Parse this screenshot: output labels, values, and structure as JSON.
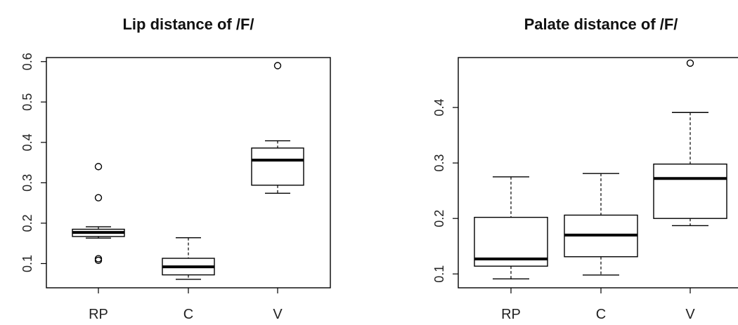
{
  "chart_data": [
    {
      "type": "boxplot",
      "title": "Lip distance of /F/",
      "categories": [
        "RP",
        "C",
        "V"
      ],
      "ylim": [
        0.04,
        0.61
      ],
      "yticks": [
        0.1,
        0.2,
        0.3,
        0.4,
        0.5,
        0.6
      ],
      "ytick_labels": [
        "0.1",
        "0.2",
        "0.3",
        "0.4",
        "0.5",
        "0.6"
      ],
      "boxes": [
        {
          "name": "RP",
          "whisker_low": 0.163,
          "q1": 0.167,
          "median": 0.177,
          "q3": 0.185,
          "whisker_high": 0.191,
          "outliers": [
            0.34,
            0.263,
            0.112,
            0.108
          ]
        },
        {
          "name": "C",
          "whisker_low": 0.061,
          "q1": 0.072,
          "median": 0.092,
          "q3": 0.113,
          "whisker_high": 0.164,
          "outliers": []
        },
        {
          "name": "V",
          "whisker_low": 0.274,
          "q1": 0.294,
          "median": 0.356,
          "q3": 0.386,
          "whisker_high": 0.404,
          "outliers": [
            0.59
          ]
        }
      ],
      "grid": false,
      "legend": "none"
    },
    {
      "type": "boxplot",
      "title": "Palate distance of /F/",
      "categories": [
        "RP",
        "C",
        "V"
      ],
      "ylim": [
        0.075,
        0.49
      ],
      "yticks": [
        0.1,
        0.2,
        0.3,
        0.4
      ],
      "ytick_labels": [
        "0.1",
        "0.2",
        "0.3",
        "0.4"
      ],
      "boxes": [
        {
          "name": "RP",
          "whisker_low": 0.091,
          "q1": 0.114,
          "median": 0.127,
          "q3": 0.202,
          "whisker_high": 0.275,
          "outliers": []
        },
        {
          "name": "C",
          "whisker_low": 0.098,
          "q1": 0.131,
          "median": 0.17,
          "q3": 0.206,
          "whisker_high": 0.281,
          "outliers": []
        },
        {
          "name": "V",
          "whisker_low": 0.187,
          "q1": 0.2,
          "median": 0.272,
          "q3": 0.298,
          "whisker_high": 0.391,
          "outliers": [
            0.48
          ]
        }
      ],
      "grid": false,
      "legend": "none"
    }
  ]
}
